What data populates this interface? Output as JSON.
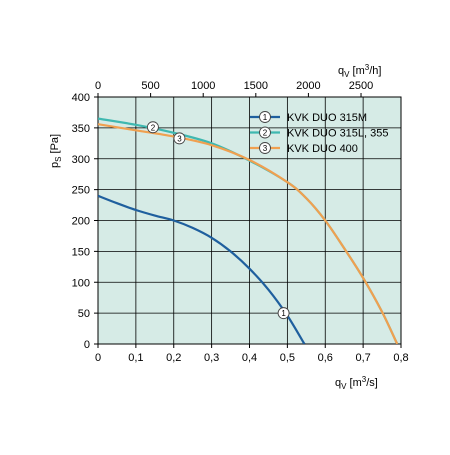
{
  "chart_data": {
    "type": "line",
    "x_axis_bottom": {
      "label_main": "q",
      "label_sub": "V",
      "unit_open": " [m",
      "unit_sup": "3",
      "unit_close": "/s]",
      "range": [
        0,
        0.8
      ],
      "ticks": [
        "0",
        "0,1",
        "0,2",
        "0,3",
        "0,4",
        "0,5",
        "0,6",
        "0,7",
        "0,8"
      ]
    },
    "x_axis_top": {
      "label_main": "q",
      "label_sub": "V",
      "unit_open": " [m",
      "unit_sup": "3",
      "unit_close": "/h]",
      "range": [
        0,
        2880
      ],
      "ticks": [
        "0",
        "500",
        "1000",
        "1500",
        "2000",
        "2500"
      ]
    },
    "y_axis": {
      "label_main": "p",
      "label_sub": "S",
      "unit": " [Pa]",
      "range": [
        0,
        400
      ],
      "ticks": [
        "0",
        "50",
        "100",
        "150",
        "200",
        "250",
        "300",
        "350",
        "400"
      ]
    },
    "grid": true,
    "legend_position": "top-right",
    "series": [
      {
        "marker": "1",
        "name": "KVK DUO 315M",
        "color": "#1f5f9e",
        "points": [
          [
            0,
            240
          ],
          [
            0.05,
            228
          ],
          [
            0.1,
            217
          ],
          [
            0.15,
            208
          ],
          [
            0.2,
            200
          ],
          [
            0.25,
            188
          ],
          [
            0.3,
            172
          ],
          [
            0.35,
            150
          ],
          [
            0.4,
            122
          ],
          [
            0.45,
            88
          ],
          [
            0.5,
            46
          ],
          [
            0.545,
            0
          ]
        ],
        "label_at": [
          0.49,
          50
        ]
      },
      {
        "marker": "2",
        "name": "KVK DUO 315L, 355",
        "color": "#3fb8b0",
        "points": [
          [
            0,
            365
          ],
          [
            0.1,
            355
          ],
          [
            0.2,
            342
          ],
          [
            0.3,
            325
          ],
          [
            0.4,
            297
          ],
          [
            0.5,
            262
          ],
          [
            0.55,
            236
          ],
          [
            0.6,
            200
          ],
          [
            0.65,
            155
          ],
          [
            0.7,
            107
          ],
          [
            0.75,
            52
          ],
          [
            0.79,
            0
          ]
        ],
        "label_at": [
          0.145,
          351
        ]
      },
      {
        "marker": "3",
        "name": "KVK DUO 400",
        "color": "#f0a050",
        "points": [
          [
            0,
            356
          ],
          [
            0.1,
            346
          ],
          [
            0.2,
            336
          ],
          [
            0.3,
            322
          ],
          [
            0.4,
            298
          ],
          [
            0.5,
            262
          ],
          [
            0.55,
            236
          ],
          [
            0.6,
            200
          ],
          [
            0.65,
            155
          ],
          [
            0.7,
            107
          ],
          [
            0.75,
            52
          ],
          [
            0.79,
            0
          ]
        ],
        "label_at": [
          0.215,
          333
        ]
      }
    ]
  }
}
